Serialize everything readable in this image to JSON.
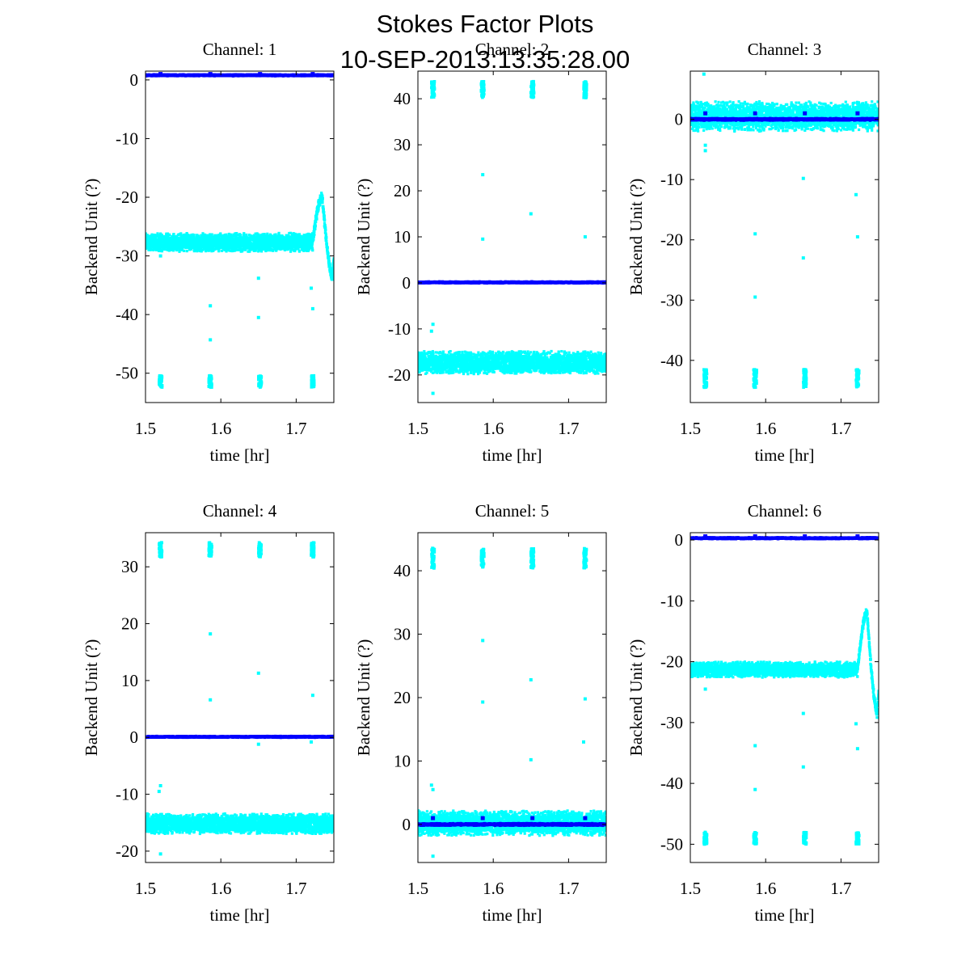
{
  "figure": {
    "title": "Stokes Factor Plots",
    "subtitle": "10-SEP-2013:13:35:28.00"
  },
  "colors": {
    "series_a": "#00ffff",
    "series_b": "#0000ff",
    "axes": "#000000"
  },
  "chart_data": [
    {
      "type": "scatter",
      "title": "Channel: 1",
      "xlabel": "time [hr]",
      "ylabel": "Backend Unit (?)",
      "xlim": [
        1.5,
        1.75
      ],
      "ylim": [
        -55,
        1.5
      ],
      "xticks": [
        1.5,
        1.6,
        1.7
      ],
      "xtick_labels": [
        "1.5",
        "1.6",
        "1.7"
      ],
      "yticks": [
        0,
        -10,
        -20,
        -30,
        -40,
        -50
      ],
      "ytick_labels": [
        "0",
        "-10",
        "-20",
        "-30",
        "-40",
        "-50"
      ],
      "series": [
        {
          "name": "cyan",
          "color": "#00ffff",
          "base": -27.7,
          "band": 1.6,
          "bump": {
            "peak": -20,
            "min": -34
          },
          "clusters": [
            -51.4
          ],
          "cluster_spread": 1.0,
          "outliers": [
            [
              1.52,
              -30
            ],
            [
              1.586,
              -38.5
            ],
            [
              1.586,
              -44.3
            ],
            [
              1.65,
              -33.8
            ],
            [
              1.65,
              -40.5
            ],
            [
              1.72,
              -35.5
            ],
            [
              1.722,
              -39
            ]
          ]
        },
        {
          "name": "blue",
          "color": "#0000ff",
          "base": 0.8,
          "band": 0.15,
          "clusters": [],
          "marks": [
            1.0
          ],
          "outliers": []
        }
      ]
    },
    {
      "type": "scatter",
      "title": "Channel: 2",
      "xlabel": "time [hr]",
      "ylabel": "Backend Unit (?)",
      "xlim": [
        1.5,
        1.75
      ],
      "ylim": [
        -26,
        46
      ],
      "xticks": [
        1.5,
        1.6,
        1.7
      ],
      "xtick_labels": [
        "1.5",
        "1.6",
        "1.7"
      ],
      "yticks": [
        40,
        30,
        20,
        10,
        0,
        -10,
        -20
      ],
      "ytick_labels": [
        "40",
        "30",
        "20",
        "10",
        "0",
        "-10",
        "-20"
      ],
      "series": [
        {
          "name": "cyan",
          "color": "#00ffff",
          "base": -17.3,
          "band": 2.5,
          "clusters": [
            42
          ],
          "cluster_spread": 1.8,
          "outliers": [
            [
              1.52,
              -9
            ],
            [
              1.518,
              -10.5
            ],
            [
              1.52,
              -24
            ],
            [
              1.586,
              23.5
            ],
            [
              1.586,
              9.5
            ],
            [
              1.65,
              15
            ],
            [
              1.722,
              10
            ]
          ]
        },
        {
          "name": "blue",
          "color": "#0000ff",
          "base": 0.1,
          "band": 0.2,
          "clusters": [],
          "marks": [],
          "outliers": []
        }
      ]
    },
    {
      "type": "scatter",
      "title": "Channel: 3",
      "xlabel": "time [hr]",
      "ylabel": "Backend Unit (?)",
      "xlim": [
        1.5,
        1.75
      ],
      "ylim": [
        -47,
        8
      ],
      "xticks": [
        1.5,
        1.6,
        1.7
      ],
      "xtick_labels": [
        "1.5",
        "1.6",
        "1.7"
      ],
      "yticks": [
        0,
        -10,
        -20,
        -30,
        -40
      ],
      "ytick_labels": [
        "0",
        "-10",
        "-20",
        "-30",
        "-40"
      ],
      "series": [
        {
          "name": "cyan",
          "color": "#00ffff",
          "base": 0.5,
          "band": 2.5,
          "clusters": [
            -43
          ],
          "cluster_spread": 1.5,
          "outliers": [
            [
              1.518,
              7.5
            ],
            [
              1.52,
              -4.3
            ],
            [
              1.52,
              -5.2
            ],
            [
              1.586,
              -19
            ],
            [
              1.586,
              -29.5
            ],
            [
              1.65,
              -9.8
            ],
            [
              1.65,
              -23
            ],
            [
              1.72,
              -12.5
            ],
            [
              1.722,
              -19.5
            ]
          ]
        },
        {
          "name": "blue",
          "color": "#0000ff",
          "base": 0.0,
          "band": 0.2,
          "clusters": [],
          "marks": [
            1.0
          ],
          "outliers": []
        }
      ]
    },
    {
      "type": "scatter",
      "title": "Channel: 4",
      "xlabel": "time [hr]",
      "ylabel": "Backend Unit (?)",
      "xlim": [
        1.5,
        1.75
      ],
      "ylim": [
        -22,
        36
      ],
      "xticks": [
        1.5,
        1.6,
        1.7
      ],
      "xtick_labels": [
        "1.5",
        "1.6",
        "1.7"
      ],
      "yticks": [
        30,
        20,
        10,
        0,
        -10,
        -20
      ],
      "ytick_labels": [
        "30",
        "20",
        "10",
        "0",
        "-10",
        "-20"
      ],
      "series": [
        {
          "name": "cyan",
          "color": "#00ffff",
          "base": -15.2,
          "band": 1.8,
          "clusters": [
            33
          ],
          "cluster_spread": 1.3,
          "outliers": [
            [
              1.52,
              -8.5
            ],
            [
              1.518,
              -9.5
            ],
            [
              1.52,
              -20.5
            ],
            [
              1.586,
              18.2
            ],
            [
              1.586,
              6.6
            ],
            [
              1.65,
              11.3
            ],
            [
              1.65,
              -1.2
            ],
            [
              1.722,
              7.4
            ],
            [
              1.72,
              -0.8
            ]
          ]
        },
        {
          "name": "blue",
          "color": "#0000ff",
          "base": 0.1,
          "band": 0.15,
          "clusters": [],
          "marks": [],
          "outliers": []
        }
      ]
    },
    {
      "type": "scatter",
      "title": "Channel: 5",
      "xlabel": "time [hr]",
      "ylabel": "Backend Unit (?)",
      "xlim": [
        1.5,
        1.75
      ],
      "ylim": [
        -6,
        46
      ],
      "xticks": [
        1.5,
        1.6,
        1.7
      ],
      "xtick_labels": [
        "1.5",
        "1.6",
        "1.7"
      ],
      "yticks": [
        40,
        30,
        20,
        10,
        0
      ],
      "ytick_labels": [
        "40",
        "30",
        "20",
        "10",
        "0"
      ],
      "series": [
        {
          "name": "cyan",
          "color": "#00ffff",
          "base": 0.2,
          "band": 2.0,
          "clusters": [
            42
          ],
          "cluster_spread": 1.6,
          "outliers": [
            [
              1.52,
              5.5
            ],
            [
              1.518,
              6.2
            ],
            [
              1.52,
              -5
            ],
            [
              1.586,
              29
            ],
            [
              1.586,
              19.3
            ],
            [
              1.65,
              22.8
            ],
            [
              1.65,
              10.2
            ],
            [
              1.722,
              19.8
            ],
            [
              1.72,
              13
            ]
          ]
        },
        {
          "name": "blue",
          "color": "#0000ff",
          "base": 0.0,
          "band": 0.2,
          "clusters": [],
          "marks": [
            1.0
          ],
          "outliers": []
        }
      ]
    },
    {
      "type": "scatter",
      "title": "Channel: 6",
      "xlabel": "time [hr]",
      "ylabel": "Backend Unit (?)",
      "xlim": [
        1.5,
        1.75
      ],
      "ylim": [
        -53,
        1.2
      ],
      "xticks": [
        1.5,
        1.6,
        1.7
      ],
      "xtick_labels": [
        "1.5",
        "1.6",
        "1.7"
      ],
      "yticks": [
        0,
        -10,
        -20,
        -30,
        -40,
        -50
      ],
      "ytick_labels": [
        "0",
        "-10",
        "-20",
        "-30",
        "-40",
        "-50"
      ],
      "series": [
        {
          "name": "cyan",
          "color": "#00ffff",
          "base": -21.3,
          "band": 1.3,
          "bump": {
            "peak": -12,
            "min": -29
          },
          "clusters": [
            -49
          ],
          "cluster_spread": 1.0,
          "outliers": [
            [
              1.52,
              -24.5
            ],
            [
              1.586,
              -33.8
            ],
            [
              1.586,
              -41
            ],
            [
              1.65,
              -28.5
            ],
            [
              1.65,
              -37.3
            ],
            [
              1.72,
              -30.2
            ],
            [
              1.722,
              -34.3
            ]
          ]
        },
        {
          "name": "blue",
          "color": "#0000ff",
          "base": 0.3,
          "band": 0.15,
          "clusters": [],
          "marks": [
            0.6
          ],
          "outliers": []
        }
      ]
    }
  ]
}
